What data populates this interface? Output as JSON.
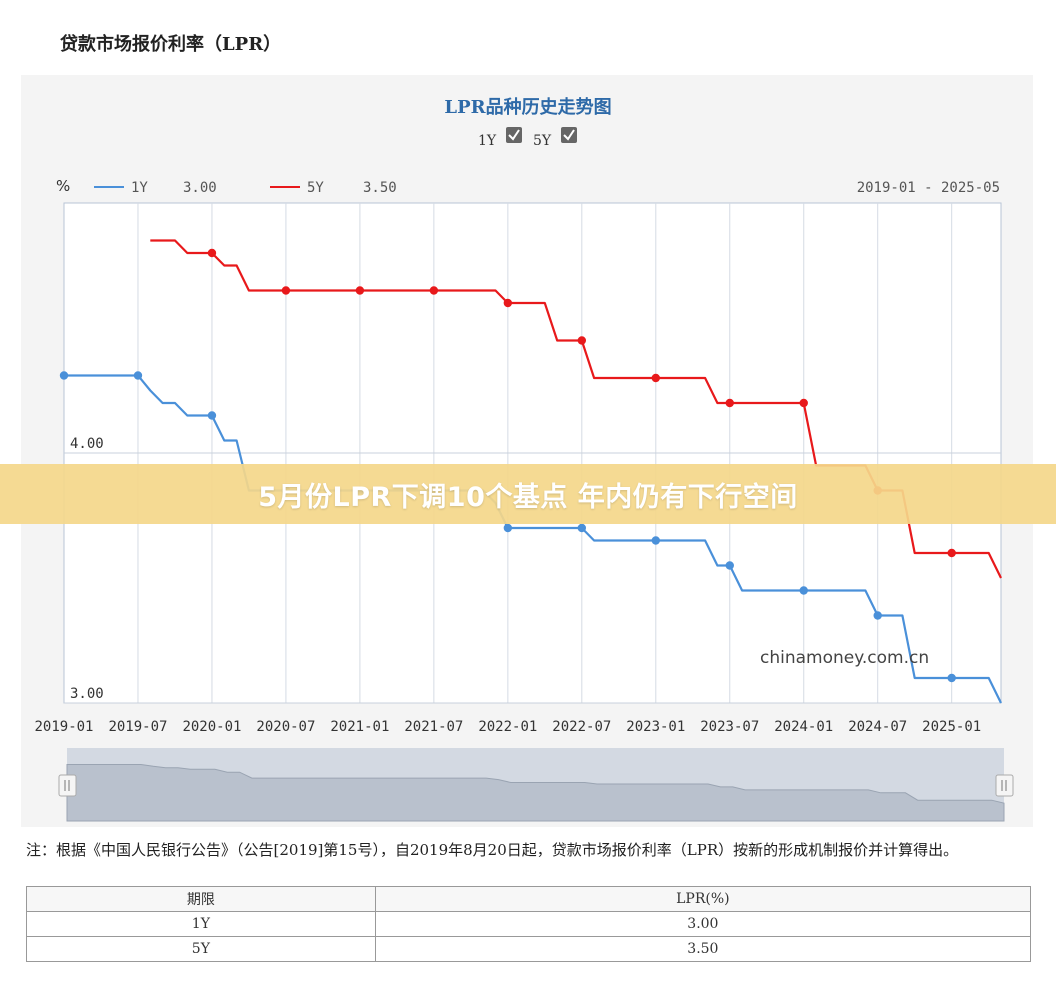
{
  "page": {
    "title": "贷款市场报价利率（LPR）",
    "banner": "5月份LPR下调10个基点 年内仍有下行空间",
    "note": "注：根据《中国人民银行公告》（公告[2019]第15号），自2019年8月20日起，贷款市场报价利率（LPR）按新的形成机制报价并计算得出。"
  },
  "table": {
    "headers": [
      "期限",
      "LPR(%)"
    ],
    "rows": [
      [
        "1Y",
        "3.00"
      ],
      [
        "5Y",
        "3.50"
      ]
    ]
  },
  "chart_data": {
    "type": "line",
    "title": "LPR品种历史走势图",
    "ylabel": "%",
    "date_range": "2019-01 - 2025-05",
    "watermark": "chinamoney.com.cn",
    "toggles": [
      {
        "label": "1Y",
        "checked": true
      },
      {
        "label": "5Y",
        "checked": true
      }
    ],
    "ylim": [
      3.0,
      5.0
    ],
    "y_ticks": [
      {
        "value": 4.0,
        "label": "4.00"
      },
      {
        "value": 3.0,
        "label": "3.00"
      }
    ],
    "x_ticks": [
      "2019-01",
      "2019-07",
      "2020-01",
      "2020-07",
      "2021-01",
      "2021-07",
      "2022-01",
      "2022-07",
      "2023-01",
      "2023-07",
      "2024-01",
      "2024-07",
      "2025-01"
    ],
    "x_range": [
      "2019-01",
      "2025-05"
    ],
    "colors": {
      "1Y": "#4a90d9",
      "5Y": "#e8191b"
    },
    "series": [
      {
        "name": "1Y",
        "current": "3.00",
        "points": [
          [
            "2019-01",
            4.31
          ],
          [
            "2019-02",
            4.31
          ],
          [
            "2019-03",
            4.31
          ],
          [
            "2019-04",
            4.31
          ],
          [
            "2019-05",
            4.31
          ],
          [
            "2019-06",
            4.31
          ],
          [
            "2019-07",
            4.31
          ],
          [
            "2019-08",
            4.25
          ],
          [
            "2019-09",
            4.2
          ],
          [
            "2019-10",
            4.2
          ],
          [
            "2019-11",
            4.15
          ],
          [
            "2019-12",
            4.15
          ],
          [
            "2020-01",
            4.15
          ],
          [
            "2020-02",
            4.05
          ],
          [
            "2020-03",
            4.05
          ],
          [
            "2020-04",
            3.85
          ],
          [
            "2020-05",
            3.85
          ],
          [
            "2020-06",
            3.85
          ],
          [
            "2020-07",
            3.85
          ],
          [
            "2020-08",
            3.85
          ],
          [
            "2020-09",
            3.85
          ],
          [
            "2020-10",
            3.85
          ],
          [
            "2020-11",
            3.85
          ],
          [
            "2020-12",
            3.85
          ],
          [
            "2021-01",
            3.85
          ],
          [
            "2021-02",
            3.85
          ],
          [
            "2021-03",
            3.85
          ],
          [
            "2021-04",
            3.85
          ],
          [
            "2021-05",
            3.85
          ],
          [
            "2021-06",
            3.85
          ],
          [
            "2021-07",
            3.85
          ],
          [
            "2021-08",
            3.85
          ],
          [
            "2021-09",
            3.85
          ],
          [
            "2021-10",
            3.85
          ],
          [
            "2021-11",
            3.85
          ],
          [
            "2021-12",
            3.8
          ],
          [
            "2022-01",
            3.7
          ],
          [
            "2022-02",
            3.7
          ],
          [
            "2022-03",
            3.7
          ],
          [
            "2022-04",
            3.7
          ],
          [
            "2022-05",
            3.7
          ],
          [
            "2022-06",
            3.7
          ],
          [
            "2022-07",
            3.7
          ],
          [
            "2022-08",
            3.65
          ],
          [
            "2022-09",
            3.65
          ],
          [
            "2022-10",
            3.65
          ],
          [
            "2022-11",
            3.65
          ],
          [
            "2022-12",
            3.65
          ],
          [
            "2023-01",
            3.65
          ],
          [
            "2023-02",
            3.65
          ],
          [
            "2023-03",
            3.65
          ],
          [
            "2023-04",
            3.65
          ],
          [
            "2023-05",
            3.65
          ],
          [
            "2023-06",
            3.55
          ],
          [
            "2023-07",
            3.55
          ],
          [
            "2023-08",
            3.45
          ],
          [
            "2023-09",
            3.45
          ],
          [
            "2023-10",
            3.45
          ],
          [
            "2023-11",
            3.45
          ],
          [
            "2023-12",
            3.45
          ],
          [
            "2024-01",
            3.45
          ],
          [
            "2024-02",
            3.45
          ],
          [
            "2024-03",
            3.45
          ],
          [
            "2024-04",
            3.45
          ],
          [
            "2024-05",
            3.45
          ],
          [
            "2024-06",
            3.45
          ],
          [
            "2024-07",
            3.35
          ],
          [
            "2024-08",
            3.35
          ],
          [
            "2024-09",
            3.35
          ],
          [
            "2024-10",
            3.1
          ],
          [
            "2024-11",
            3.1
          ],
          [
            "2024-12",
            3.1
          ],
          [
            "2025-01",
            3.1
          ],
          [
            "2025-02",
            3.1
          ],
          [
            "2025-03",
            3.1
          ],
          [
            "2025-04",
            3.1
          ],
          [
            "2025-05",
            3.0
          ]
        ],
        "marked": [
          "2019-01",
          "2019-07",
          "2020-01",
          "2020-07",
          "2021-01",
          "2021-07",
          "2022-01",
          "2022-07",
          "2023-01",
          "2023-07",
          "2024-01",
          "2024-07",
          "2025-01"
        ]
      },
      {
        "name": "5Y",
        "current": "3.50",
        "points": [
          [
            "2019-08",
            4.85
          ],
          [
            "2019-09",
            4.85
          ],
          [
            "2019-10",
            4.85
          ],
          [
            "2019-11",
            4.8
          ],
          [
            "2019-12",
            4.8
          ],
          [
            "2020-01",
            4.8
          ],
          [
            "2020-02",
            4.75
          ],
          [
            "2020-03",
            4.75
          ],
          [
            "2020-04",
            4.65
          ],
          [
            "2020-05",
            4.65
          ],
          [
            "2020-06",
            4.65
          ],
          [
            "2020-07",
            4.65
          ],
          [
            "2020-08",
            4.65
          ],
          [
            "2020-09",
            4.65
          ],
          [
            "2020-10",
            4.65
          ],
          [
            "2020-11",
            4.65
          ],
          [
            "2020-12",
            4.65
          ],
          [
            "2021-01",
            4.65
          ],
          [
            "2021-02",
            4.65
          ],
          [
            "2021-03",
            4.65
          ],
          [
            "2021-04",
            4.65
          ],
          [
            "2021-05",
            4.65
          ],
          [
            "2021-06",
            4.65
          ],
          [
            "2021-07",
            4.65
          ],
          [
            "2021-08",
            4.65
          ],
          [
            "2021-09",
            4.65
          ],
          [
            "2021-10",
            4.65
          ],
          [
            "2021-11",
            4.65
          ],
          [
            "2021-12",
            4.65
          ],
          [
            "2022-01",
            4.6
          ],
          [
            "2022-02",
            4.6
          ],
          [
            "2022-03",
            4.6
          ],
          [
            "2022-04",
            4.6
          ],
          [
            "2022-05",
            4.45
          ],
          [
            "2022-06",
            4.45
          ],
          [
            "2022-07",
            4.45
          ],
          [
            "2022-08",
            4.3
          ],
          [
            "2022-09",
            4.3
          ],
          [
            "2022-10",
            4.3
          ],
          [
            "2022-11",
            4.3
          ],
          [
            "2022-12",
            4.3
          ],
          [
            "2023-01",
            4.3
          ],
          [
            "2023-02",
            4.3
          ],
          [
            "2023-03",
            4.3
          ],
          [
            "2023-04",
            4.3
          ],
          [
            "2023-05",
            4.3
          ],
          [
            "2023-06",
            4.2
          ],
          [
            "2023-07",
            4.2
          ],
          [
            "2023-08",
            4.2
          ],
          [
            "2023-09",
            4.2
          ],
          [
            "2023-10",
            4.2
          ],
          [
            "2023-11",
            4.2
          ],
          [
            "2023-12",
            4.2
          ],
          [
            "2024-01",
            4.2
          ],
          [
            "2024-02",
            3.95
          ],
          [
            "2024-03",
            3.95
          ],
          [
            "2024-04",
            3.95
          ],
          [
            "2024-05",
            3.95
          ],
          [
            "2024-06",
            3.95
          ],
          [
            "2024-07",
            3.85
          ],
          [
            "2024-08",
            3.85
          ],
          [
            "2024-09",
            3.85
          ],
          [
            "2024-10",
            3.6
          ],
          [
            "2024-11",
            3.6
          ],
          [
            "2024-12",
            3.6
          ],
          [
            "2025-01",
            3.6
          ],
          [
            "2025-02",
            3.6
          ],
          [
            "2025-03",
            3.6
          ],
          [
            "2025-04",
            3.6
          ],
          [
            "2025-05",
            3.5
          ]
        ],
        "marked": [
          "2020-01",
          "2020-07",
          "2021-01",
          "2021-07",
          "2022-01",
          "2022-07",
          "2023-01",
          "2023-07",
          "2024-01",
          "2024-07",
          "2025-01"
        ]
      }
    ]
  }
}
